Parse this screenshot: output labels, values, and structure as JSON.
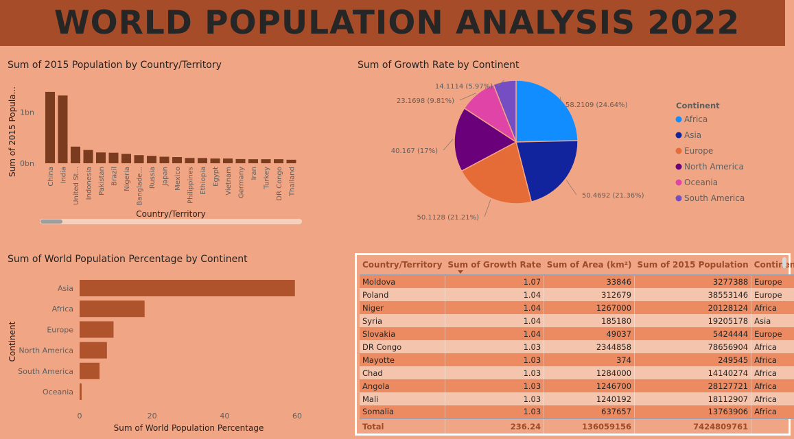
{
  "dashboard_title": "WORLD POPULATION ANALYSIS 2022",
  "colors": {
    "banner": "#A74C28",
    "background": "#F0A585",
    "bar_dark": "#7B3B1E",
    "bar_medium": "#AE532C",
    "accent": "#9E4B2A"
  },
  "chart_data": [
    {
      "type": "bar",
      "orientation": "vertical",
      "title": "Sum of 2015 Population by Country/Territory",
      "xlabel": "Country/Territory",
      "ylabel": "Sum of 2015 Popula...",
      "y_ticks": [
        "0bn",
        "1bn"
      ],
      "y_tick_values": [
        0,
        1000000000
      ],
      "ylim": [
        0,
        1500000000
      ],
      "categories": [
        "China",
        "India",
        "United St...",
        "Indonesia",
        "Pakistan",
        "Brazil",
        "Nigeria",
        "Banglade...",
        "Russia",
        "Japan",
        "Mexico",
        "Philippines",
        "Ethiopia",
        "Egypt",
        "Vietnam",
        "Germany",
        "Iran",
        "Turkey",
        "DR Congo",
        "Thailand"
      ],
      "values": [
        1393715448,
        1322866505,
        324607776,
        259091970,
        210969298,
        205188205,
        183995785,
        157830000,
        144668389,
        127250933,
        120149897,
        103031365,
        102471895,
        92442547,
        92191398,
        81787411,
        78492215,
        78529409,
        78656904,
        68714519
      ]
    },
    {
      "type": "pie",
      "title": "Sum of Growth Rate by Continent",
      "legend_title": "Continent",
      "legend_position": "right",
      "slices": [
        {
          "name": "Africa",
          "value": 58.2109,
          "label": "58.2109 (24.64%)",
          "color": "#118DFF"
        },
        {
          "name": "Asia",
          "value": 50.4692,
          "label": "50.4692 (21.36%)",
          "color": "#12239E"
        },
        {
          "name": "Europe",
          "value": 50.1128,
          "label": "50.1128 (21.21%)",
          "color": "#E66C37"
        },
        {
          "name": "North America",
          "value": 40.167,
          "label": "40.167 (17%)",
          "color": "#6B007B"
        },
        {
          "name": "Oceania",
          "value": 23.1698,
          "label": "23.1698 (9.81%)",
          "color": "#E044A7"
        },
        {
          "name": "South America",
          "value": 14.1114,
          "label": "14.1114 (5.97%)",
          "color": "#744EC2"
        }
      ]
    },
    {
      "type": "bar",
      "orientation": "horizontal",
      "title": "Sum of World Population Percentage by Continent",
      "xlabel": "Sum of World Population Percentage",
      "ylabel": "Continent",
      "x_ticks": [
        0,
        20,
        40,
        60
      ],
      "xlim": [
        0,
        60
      ],
      "categories": [
        "Asia",
        "Africa",
        "Europe",
        "North America",
        "South America",
        "Oceania"
      ],
      "values": [
        59.19,
        17.87,
        9.33,
        7.51,
        5.48,
        0.55
      ]
    }
  ],
  "table": {
    "columns": [
      "Country/Territory",
      "Sum of Growth Rate",
      "Sum of Area (km²)",
      "Sum of 2015 Population",
      "Continent"
    ],
    "rows": [
      [
        "Moldova",
        "1.07",
        "33846",
        "3277388",
        "Europe"
      ],
      [
        "Poland",
        "1.04",
        "312679",
        "38553146",
        "Europe"
      ],
      [
        "Niger",
        "1.04",
        "1267000",
        "20128124",
        "Africa"
      ],
      [
        "Syria",
        "1.04",
        "185180",
        "19205178",
        "Asia"
      ],
      [
        "Slovakia",
        "1.04",
        "49037",
        "5424444",
        "Europe"
      ],
      [
        "DR Congo",
        "1.03",
        "2344858",
        "78656904",
        "Africa"
      ],
      [
        "Mayotte",
        "1.03",
        "374",
        "249545",
        "Africa"
      ],
      [
        "Chad",
        "1.03",
        "1284000",
        "14140274",
        "Africa"
      ],
      [
        "Angola",
        "1.03",
        "1246700",
        "28127721",
        "Africa"
      ],
      [
        "Mali",
        "1.03",
        "1240192",
        "18112907",
        "Africa"
      ],
      [
        "Somalia",
        "1.03",
        "637657",
        "13763906",
        "Africa"
      ]
    ],
    "total": [
      "Total",
      "236.24",
      "136059156",
      "7424809761",
      ""
    ]
  }
}
